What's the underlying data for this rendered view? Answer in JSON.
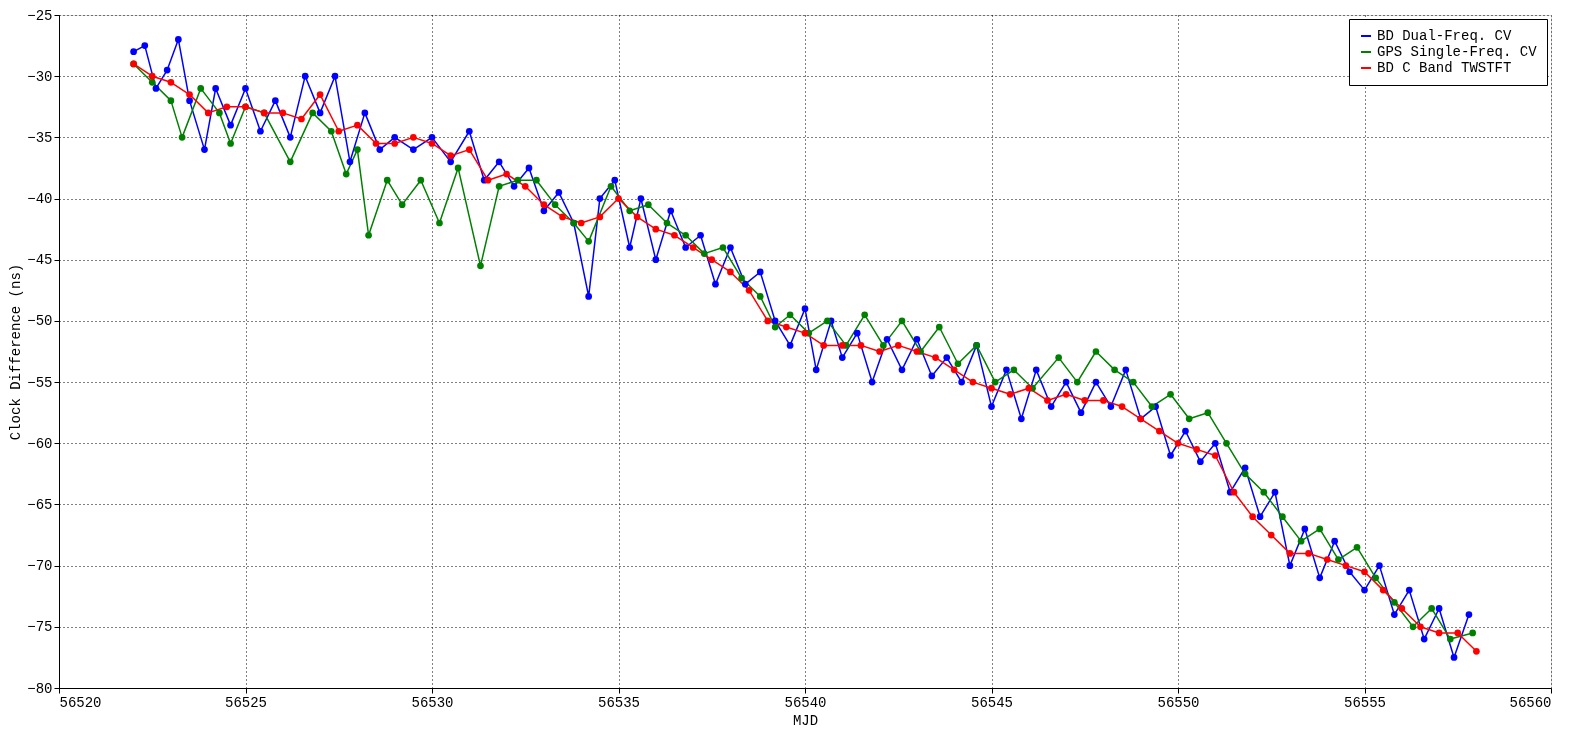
{
  "chart_data": {
    "type": "line",
    "xlabel": "MJD",
    "ylabel": "Clock Difference (ns)",
    "xlim": [
      56520,
      56560
    ],
    "xticks": [
      56520,
      56525,
      56530,
      56535,
      56540,
      56545,
      56550,
      56555,
      56560
    ],
    "ylim": [
      -80,
      -25
    ],
    "yticks": [
      -80,
      -75,
      -70,
      -65,
      -60,
      -55,
      -50,
      -45,
      -40,
      -35,
      -30,
      -25
    ],
    "grid": true,
    "legend": "top right",
    "marker": "circle",
    "line_style": "solid",
    "series": [
      {
        "name": "BD Dual-Freq. CV",
        "color": "#0000ff",
        "x": [
          56522,
          56522.3,
          56522.6,
          56522.9,
          56523.2,
          56523.5,
          56523.9,
          56524.2,
          56524.6,
          56525,
          56525.4,
          56525.8,
          56526.2,
          56526.6,
          56527,
          56527.4,
          56527.8,
          56528.2,
          56528.6,
          56529,
          56529.5,
          56530,
          56530.5,
          56531,
          56531.4,
          56531.8,
          56532.2,
          56532.6,
          56533,
          56533.4,
          56533.8,
          56534.2,
          56534.5,
          56534.9,
          56535.3,
          56535.6,
          56536,
          56536.4,
          56536.8,
          56537.2,
          56537.6,
          56538,
          56538.4,
          56538.8,
          56539.2,
          56539.6,
          56540,
          56540.3,
          56540.7,
          56541,
          56541.4,
          56541.8,
          56542.2,
          56542.6,
          56543,
          56543.4,
          56543.8,
          56544.2,
          56544.6,
          56545,
          56545.4,
          56545.8,
          56546.2,
          56546.6,
          56547,
          56547.4,
          56547.8,
          56548.2,
          56548.6,
          56549,
          56549.4,
          56549.8,
          56550.2,
          56550.6,
          56551,
          56551.4,
          56551.8,
          56552.2,
          56552.6,
          56553,
          56553.4,
          56553.8,
          56554.2,
          56554.6,
          56555,
          56555.4,
          56555.8,
          56556.2,
          56556.6,
          56557,
          56557.4,
          56557.8
        ],
        "values": [
          -28,
          -27.5,
          -31,
          -29.5,
          -27,
          -32,
          -36,
          -31,
          -34,
          -31,
          -34.5,
          -32,
          -35,
          -30,
          -33,
          -30,
          -37,
          -33,
          -36,
          -35,
          -36,
          -35,
          -37,
          -34.5,
          -38.5,
          -37,
          -39,
          -37.5,
          -41,
          -39.5,
          -42,
          -48,
          -40,
          -38.5,
          -44,
          -40,
          -45,
          -41,
          -44,
          -43,
          -47,
          -44,
          -47,
          -46,
          -50,
          -52,
          -49,
          -54,
          -50,
          -53,
          -51,
          -55,
          -51.5,
          -54,
          -51.5,
          -54.5,
          -53,
          -55,
          -52,
          -57,
          -54,
          -58,
          -54,
          -57,
          -55,
          -57.5,
          -55,
          -57,
          -54,
          -58,
          -57,
          -61,
          -59,
          -61.5,
          -60,
          -64,
          -62,
          -66,
          -64,
          -70,
          -67,
          -71,
          -68,
          -70.5,
          -72,
          -70,
          -74,
          -72,
          -76,
          -73.5,
          -77.5,
          -74
        ]
      },
      {
        "name": "GPS Single-Freq. CV",
        "color": "#008000",
        "x": [
          56522,
          56522.5,
          56523,
          56523.3,
          56523.8,
          56524.3,
          56524.6,
          56525,
          56525.5,
          56526.2,
          56526.8,
          56527.3,
          56527.7,
          56528,
          56528.3,
          56528.8,
          56529.2,
          56529.7,
          56530.2,
          56530.7,
          56531.3,
          56531.8,
          56532.3,
          56532.8,
          56533.3,
          56533.8,
          56534.2,
          56534.8,
          56535.3,
          56535.8,
          56536.3,
          56536.8,
          56537.3,
          56537.8,
          56538.3,
          56538.8,
          56539.2,
          56539.6,
          56540.1,
          56540.6,
          56541.1,
          56541.6,
          56542.1,
          56542.6,
          56543.1,
          56543.6,
          56544.1,
          56544.6,
          56545.1,
          56545.6,
          56546.1,
          56546.8,
          56547.3,
          56547.8,
          56548.3,
          56548.8,
          56549.3,
          56549.8,
          56550.3,
          56550.8,
          56551.3,
          56551.8,
          56552.3,
          56552.8,
          56553.3,
          56553.8,
          56554.3,
          56554.8,
          56555.3,
          56555.8,
          56556.3,
          56556.8,
          56557.3,
          56557.9
        ],
        "values": [
          -29,
          -30.5,
          -32,
          -35,
          -31,
          -33,
          -35.5,
          -32.5,
          -33,
          -37,
          -33,
          -34.5,
          -38,
          -36,
          -43,
          -38.5,
          -40.5,
          -38.5,
          -42,
          -37.5,
          -45.5,
          -39,
          -38.5,
          -38.5,
          -40.5,
          -42,
          -43.5,
          -39,
          -41,
          -40.5,
          -42,
          -43,
          -44.5,
          -44,
          -46.5,
          -48,
          -50.5,
          -49.5,
          -51,
          -50,
          -52,
          -49.5,
          -52,
          -50,
          -52.5,
          -50.5,
          -53.5,
          -52,
          -55,
          -54,
          -55.5,
          -53,
          -55,
          -52.5,
          -54,
          -55,
          -57,
          -56,
          -58,
          -57.5,
          -60,
          -62.5,
          -64,
          -66,
          -68,
          -67,
          -69.5,
          -68.5,
          -71,
          -73,
          -75,
          -73.5,
          -76,
          -75.5
        ]
      },
      {
        "name": "BD C Band TWSTFT",
        "color": "#ff0000",
        "x": [
          56522,
          56522.5,
          56523,
          56523.5,
          56524,
          56524.5,
          56525,
          56525.5,
          56526,
          56526.5,
          56527,
          56527.5,
          56528,
          56528.5,
          56529,
          56529.5,
          56530,
          56530.5,
          56531,
          56531.5,
          56532,
          56532.5,
          56533,
          56533.5,
          56534,
          56534.5,
          56535,
          56535.5,
          56536,
          56536.5,
          56537,
          56537.5,
          56538,
          56538.5,
          56539,
          56539.5,
          56540,
          56540.5,
          56541,
          56541.5,
          56542,
          56542.5,
          56543,
          56543.5,
          56544,
          56544.5,
          56545,
          56545.5,
          56546,
          56546.5,
          56547,
          56547.5,
          56548,
          56548.5,
          56549,
          56549.5,
          56550,
          56550.5,
          56551,
          56551.5,
          56552,
          56552.5,
          56553,
          56553.5,
          56554,
          56554.5,
          56555,
          56555.5,
          56556,
          56556.5,
          56557,
          56557.5,
          56558
        ],
        "values": [
          -29,
          -30,
          -30.5,
          -31.5,
          -33,
          -32.5,
          -32.5,
          -33,
          -33,
          -33.5,
          -31.5,
          -34.5,
          -34,
          -35.5,
          -35.5,
          -35,
          -35.5,
          -36.5,
          -36,
          -38.5,
          -38,
          -39,
          -40.5,
          -41.5,
          -42,
          -41.5,
          -40,
          -41.5,
          -42.5,
          -43,
          -44,
          -45,
          -46,
          -47.5,
          -50,
          -50.5,
          -51,
          -52,
          -52,
          -52,
          -52.5,
          -52,
          -52.5,
          -53,
          -54,
          -55,
          -55.5,
          -56,
          -55.5,
          -56.5,
          -56,
          -56.5,
          -56.5,
          -57,
          -58,
          -59,
          -60,
          -60.5,
          -61,
          -64,
          -66,
          -67.5,
          -69,
          -69,
          -69.5,
          -70,
          -70.5,
          -72,
          -73.5,
          -75,
          -75.5,
          -75.5,
          -77
        ]
      }
    ]
  }
}
